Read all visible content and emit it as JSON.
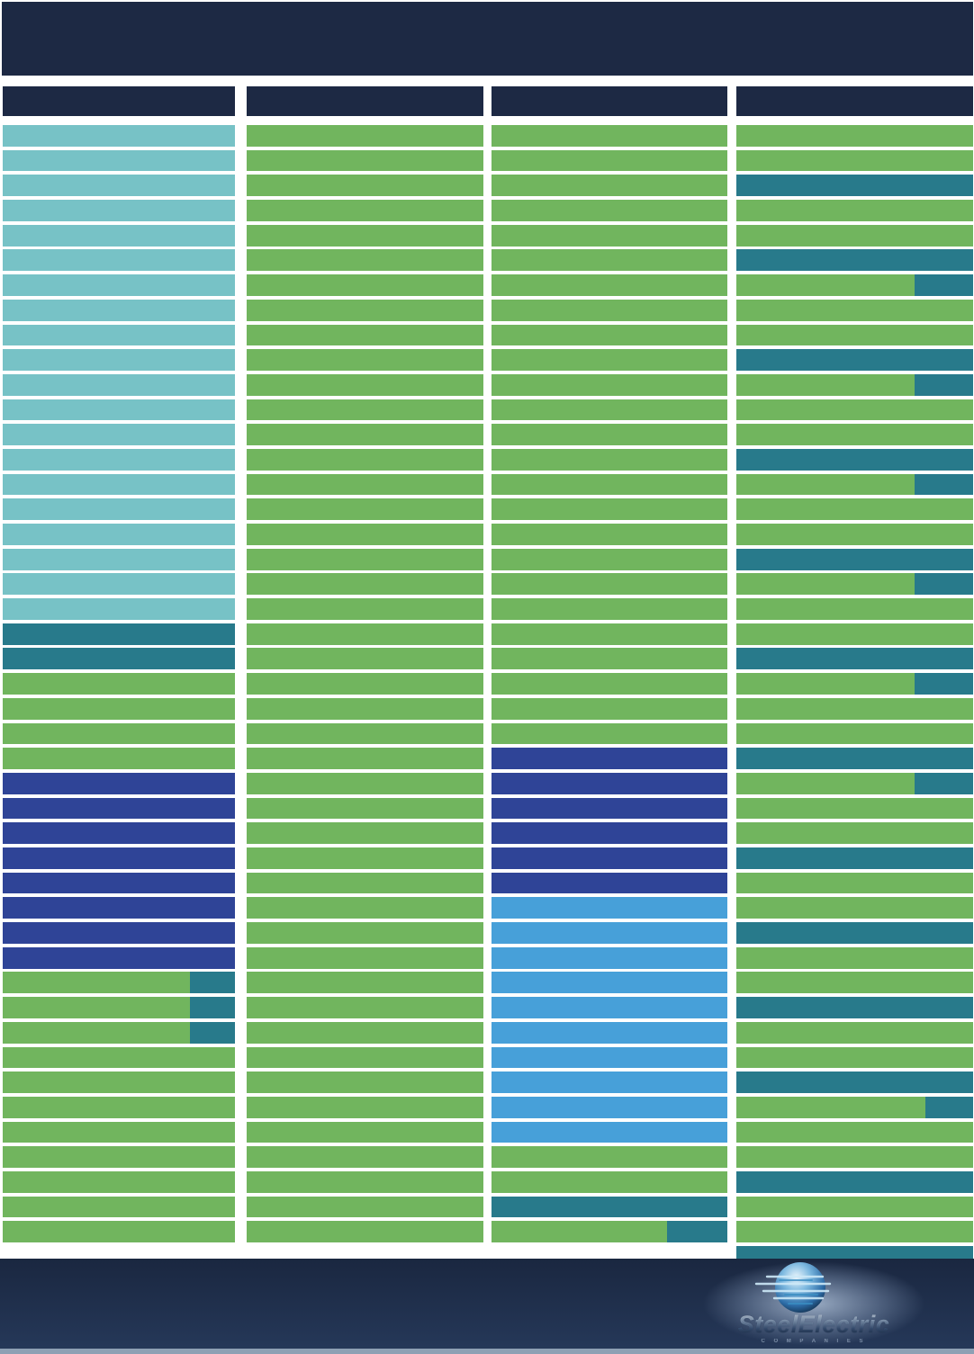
{
  "page": {
    "background": "#ffffff"
  },
  "palette": {
    "header_navy": "#1d2944",
    "light_teal": "#77c2c6",
    "dark_teal": "#287a8b",
    "green": "#71b55e",
    "dark_blue": "#2f4497",
    "light_blue": "#47a0d9",
    "footer_navy_top": "#1a2740",
    "footer_navy_bottom": "#26395a",
    "footer_strip": "#8ea0b4"
  },
  "top_banner": {
    "has_text": false
  },
  "columns": [
    {
      "name": "column-1",
      "row_groups": [
        {
          "c": "light_teal",
          "n": 20
        },
        {
          "c": "dark_teal",
          "n": 2
        },
        {
          "c": "green",
          "n": 4
        },
        {
          "c": "dark_blue",
          "n": 8
        },
        {
          "c": "green",
          "n": 3,
          "end": "dark_teal",
          "end_pct": 19.5
        },
        {
          "c": "green",
          "n": 8
        }
      ]
    },
    {
      "name": "column-2",
      "row_groups": [
        {
          "c": "green",
          "n": 45
        }
      ]
    },
    {
      "name": "column-3",
      "row_groups": [
        {
          "c": "green",
          "n": 25
        },
        {
          "c": "dark_blue",
          "n": 6
        },
        {
          "c": "light_blue",
          "n": 10
        },
        {
          "c": "green",
          "n": 2
        },
        {
          "c": "dark_teal",
          "n": 1
        },
        {
          "c": "green",
          "n": 1,
          "end": "dark_teal",
          "end_pct": 25.6
        }
      ]
    },
    {
      "name": "column-4",
      "row_groups": [
        {
          "c": "green",
          "n": 2
        },
        {
          "c": "dark_teal",
          "n": 1
        },
        {
          "c": "green",
          "n": 2
        },
        {
          "c": "dark_teal",
          "n": 1
        },
        {
          "c": "green",
          "n": 1,
          "end": "dark_teal",
          "end_pct": 24.7
        },
        {
          "c": "green",
          "n": 2
        },
        {
          "c": "dark_teal",
          "n": 1
        },
        {
          "c": "green",
          "n": 1,
          "end": "dark_teal",
          "end_pct": 24.7
        },
        {
          "c": "green",
          "n": 2
        },
        {
          "c": "dark_teal",
          "n": 1
        },
        {
          "c": "green",
          "n": 1,
          "end": "dark_teal",
          "end_pct": 24.7
        },
        {
          "c": "green",
          "n": 2
        },
        {
          "c": "dark_teal",
          "n": 1
        },
        {
          "c": "green",
          "n": 1,
          "end": "dark_teal",
          "end_pct": 24.7
        },
        {
          "c": "green",
          "n": 2
        },
        {
          "c": "dark_teal",
          "n": 1
        },
        {
          "c": "green",
          "n": 1,
          "end": "dark_teal",
          "end_pct": 24.7
        },
        {
          "c": "green",
          "n": 2
        },
        {
          "c": "dark_teal",
          "n": 1
        },
        {
          "c": "green",
          "n": 1,
          "end": "dark_teal",
          "end_pct": 24.7
        },
        {
          "c": "green",
          "n": 2
        },
        {
          "c": "dark_teal",
          "n": 1
        },
        {
          "c": "green",
          "n": 2
        },
        {
          "c": "dark_teal",
          "n": 1
        },
        {
          "c": "green",
          "n": 2
        },
        {
          "c": "dark_teal",
          "n": 1
        },
        {
          "c": "green",
          "n": 2
        },
        {
          "c": "dark_teal",
          "n": 1
        },
        {
          "c": "green",
          "n": 1,
          "end": "dark_teal",
          "end_pct": 20.2
        },
        {
          "c": "green",
          "n": 2
        },
        {
          "c": "dark_teal",
          "n": 1
        },
        {
          "c": "green",
          "n": 2
        },
        {
          "c": "dark_teal",
          "n": 1
        },
        {
          "c": "green",
          "n": 1,
          "end": "dark_teal",
          "end_pct": 20.2
        },
        {
          "c": "green",
          "n": 2
        }
      ]
    }
  ],
  "footer": {
    "logo": {
      "brand": "SteelElectric",
      "subtitle": "C O M P A N I E S"
    }
  }
}
